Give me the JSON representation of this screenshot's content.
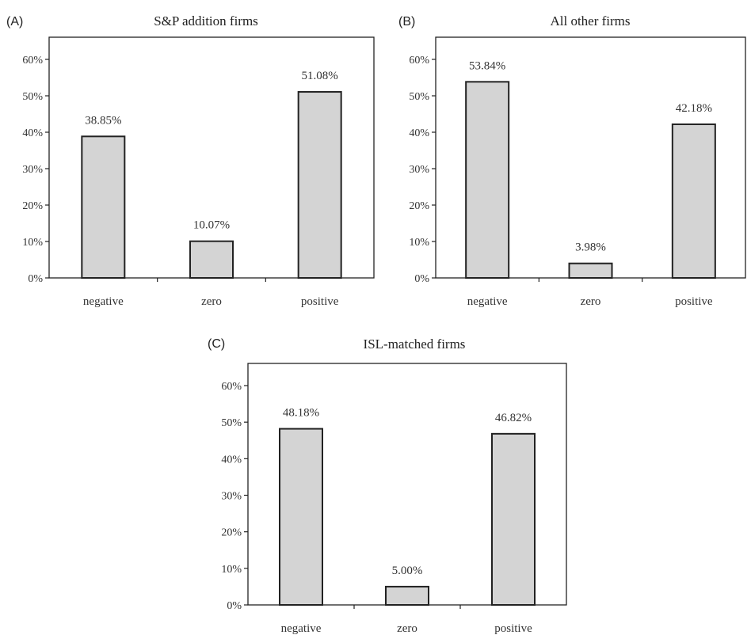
{
  "colors": {
    "bar_fill": "#d4d4d4",
    "bar_stroke": "#222222",
    "axis": "#222222",
    "frame": "#222222"
  },
  "chart_data": [
    {
      "type": "bar",
      "panel": "(A)",
      "title": "S&P addition firms",
      "categories": [
        "negative",
        "zero",
        "positive"
      ],
      "values": [
        38.85,
        10.07,
        51.08
      ],
      "data_labels": [
        "38.85%",
        "10.07%",
        "51.08%"
      ],
      "ylim": [
        0,
        60
      ],
      "yticks": [
        0,
        10,
        20,
        30,
        40,
        50,
        60
      ],
      "ytick_labels": [
        "0%",
        "10%",
        "20%",
        "30%",
        "40%",
        "50%",
        "60%"
      ],
      "xlabel": "",
      "ylabel": "",
      "grid": false
    },
    {
      "type": "bar",
      "panel": "(B)",
      "title": "All other firms",
      "categories": [
        "negative",
        "zero",
        "positive"
      ],
      "values": [
        53.84,
        3.98,
        42.18
      ],
      "data_labels": [
        "53.84%",
        "3.98%",
        "42.18%"
      ],
      "ylim": [
        0,
        60
      ],
      "yticks": [
        0,
        10,
        20,
        30,
        40,
        50,
        60
      ],
      "ytick_labels": [
        "0%",
        "10%",
        "20%",
        "30%",
        "40%",
        "50%",
        "60%"
      ],
      "xlabel": "",
      "ylabel": "",
      "grid": false
    },
    {
      "type": "bar",
      "panel": "(C)",
      "title": "ISL-matched firms",
      "categories": [
        "negative",
        "zero",
        "positive"
      ],
      "values": [
        48.18,
        5.0,
        46.82
      ],
      "data_labels": [
        "48.18%",
        "5.00%",
        "46.82%"
      ],
      "ylim": [
        0,
        60
      ],
      "yticks": [
        0,
        10,
        20,
        30,
        40,
        50,
        60
      ],
      "ytick_labels": [
        "0%",
        "10%",
        "20%",
        "30%",
        "40%",
        "50%",
        "60%"
      ],
      "xlabel": "",
      "ylabel": "",
      "grid": false
    }
  ]
}
